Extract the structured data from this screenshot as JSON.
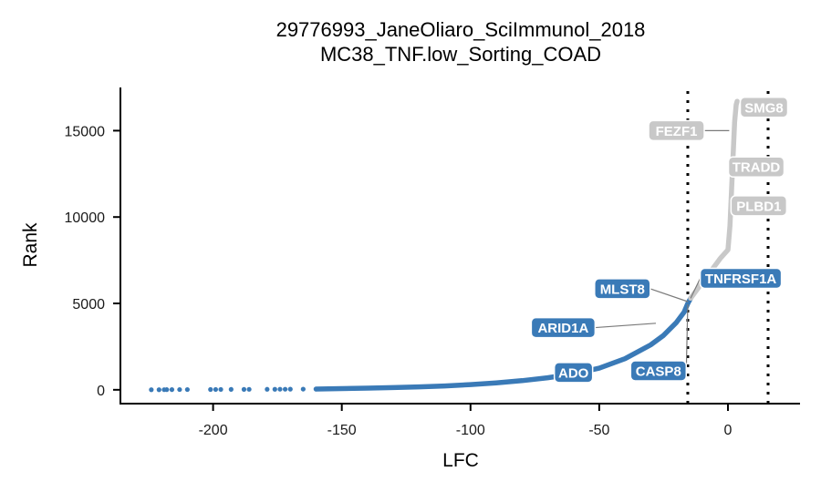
{
  "chart_data": {
    "type": "scatter",
    "title": "29776993_JaneOliaro_SciImmunol_2018",
    "subtitle": "MC38_TNF.low_Sorting_COAD",
    "xlabel": "LFC",
    "ylabel": "Rank",
    "xlim": [
      -236,
      28
    ],
    "ylim": [
      -800,
      17500
    ],
    "x_ticks": [
      -200,
      -150,
      -100,
      -50,
      0
    ],
    "x_tick_labels": [
      "-200",
      "-150",
      "-100",
      "-50",
      "0"
    ],
    "y_ticks": [
      0,
      5000,
      10000,
      15000
    ],
    "y_tick_labels": [
      "0",
      "5000",
      "10000",
      "15000"
    ],
    "vlines": [
      -15.6,
      15.6
    ],
    "grid": false,
    "colors": {
      "depleted": "#3a7ab7",
      "neutral": "#c8c8c8"
    },
    "tail_points": [
      {
        "x": -224,
        "y": 3
      },
      {
        "x": -221,
        "y": 5
      },
      {
        "x": -219,
        "y": 7
      },
      {
        "x": -218,
        "y": 9
      },
      {
        "x": -216,
        "y": 11
      },
      {
        "x": -213,
        "y": 13
      },
      {
        "x": -210,
        "y": 15
      },
      {
        "x": -201,
        "y": 17
      },
      {
        "x": -199,
        "y": 19
      },
      {
        "x": -197,
        "y": 21
      },
      {
        "x": -193,
        "y": 23
      },
      {
        "x": -188,
        "y": 25
      },
      {
        "x": -186,
        "y": 27
      },
      {
        "x": -179,
        "y": 29
      },
      {
        "x": -176,
        "y": 31
      },
      {
        "x": -174,
        "y": 33
      },
      {
        "x": -172,
        "y": 35
      },
      {
        "x": -170,
        "y": 37
      },
      {
        "x": -165,
        "y": 39
      },
      {
        "x": -160,
        "y": 41
      }
    ],
    "curve_depleted": [
      {
        "x": -160,
        "y": 45
      },
      {
        "x": -150,
        "y": 70
      },
      {
        "x": -140,
        "y": 95
      },
      {
        "x": -130,
        "y": 130
      },
      {
        "x": -120,
        "y": 170
      },
      {
        "x": -110,
        "y": 225
      },
      {
        "x": -100,
        "y": 300
      },
      {
        "x": -90,
        "y": 400
      },
      {
        "x": -80,
        "y": 530
      },
      {
        "x": -70,
        "y": 700
      },
      {
        "x": -60,
        "y": 920
      },
      {
        "x": -50,
        "y": 1250
      },
      {
        "x": -40,
        "y": 1800
      },
      {
        "x": -30,
        "y": 2600
      },
      {
        "x": -25,
        "y": 3150
      },
      {
        "x": -20,
        "y": 3900
      },
      {
        "x": -17,
        "y": 4500
      },
      {
        "x": -15.6,
        "y": 5000
      },
      {
        "x": -14.5,
        "y": 5300
      }
    ],
    "curve_neutral": [
      {
        "x": -14.5,
        "y": 5300
      },
      {
        "x": -12,
        "y": 5800
      },
      {
        "x": -9,
        "y": 6400
      },
      {
        "x": -6,
        "y": 7000
      },
      {
        "x": -3,
        "y": 7600
      },
      {
        "x": 0,
        "y": 8100
      },
      {
        "x": 0.8,
        "y": 9500
      },
      {
        "x": 1.4,
        "y": 11500
      },
      {
        "x": 2,
        "y": 13500
      },
      {
        "x": 2.6,
        "y": 15500
      },
      {
        "x": 3.2,
        "y": 16500
      },
      {
        "x": 3.6,
        "y": 16700
      }
    ],
    "labeled_genes": [
      {
        "gene": "SMG8",
        "x": 3.5,
        "y": 16700,
        "group": "neutral"
      },
      {
        "gene": "FEZF1",
        "x": 0.5,
        "y": 15000,
        "group": "neutral"
      },
      {
        "gene": "TRADD",
        "x": 2.5,
        "y": 13000,
        "group": "neutral"
      },
      {
        "gene": "PLBD1",
        "x": 2.0,
        "y": 10500,
        "group": "neutral"
      },
      {
        "gene": "TNFRSF1A",
        "x": -14.5,
        "y": 5300,
        "group": "depleted"
      },
      {
        "gene": "MLST8",
        "x": -15.5,
        "y": 5100,
        "group": "depleted"
      },
      {
        "gene": "ARID1A",
        "x": -28,
        "y": 3850,
        "group": "depleted"
      },
      {
        "gene": "CASP8",
        "x": -15.6,
        "y": 4950,
        "group": "depleted"
      },
      {
        "gene": "ADO",
        "x": -54,
        "y": 1150,
        "group": "depleted"
      }
    ],
    "labels": [
      {
        "text": "SMG8",
        "lx": 14,
        "ly": 16350,
        "group": "neutral"
      },
      {
        "text": "FEZF1",
        "lx": -20,
        "ly": 15000,
        "group": "neutral"
      },
      {
        "text": "TRADD",
        "lx": 11,
        "ly": 12900,
        "group": "neutral"
      },
      {
        "text": "PLBD1",
        "lx": 12,
        "ly": 10650,
        "group": "neutral"
      },
      {
        "text": "TNFRSF1A",
        "lx": 5,
        "ly": 6450,
        "group": "depleted"
      },
      {
        "text": "MLST8",
        "lx": -41,
        "ly": 5850,
        "group": "depleted"
      },
      {
        "text": "ARID1A",
        "lx": -64,
        "ly": 3600,
        "group": "depleted"
      },
      {
        "text": "CASP8",
        "lx": -27,
        "ly": 1100,
        "group": "depleted"
      },
      {
        "text": "ADO",
        "lx": -60,
        "ly": 1000,
        "group": "depleted"
      }
    ]
  }
}
